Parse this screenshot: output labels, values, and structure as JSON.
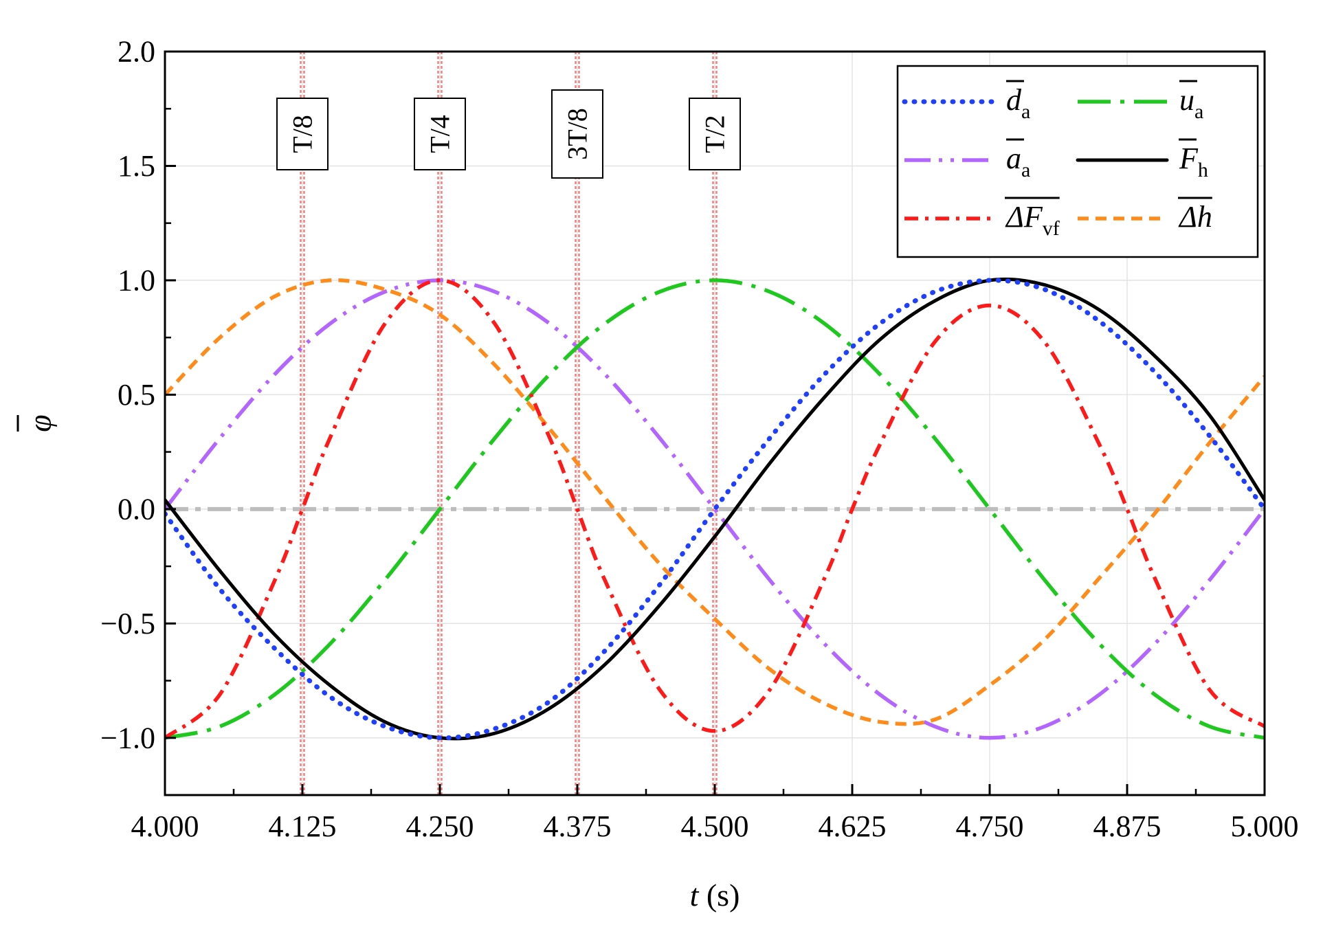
{
  "chart_data": {
    "type": "line",
    "title": "",
    "xlabel": {
      "var": "t",
      "unit": " (s)"
    },
    "ylabel": {
      "var": "φ",
      "overline": true
    },
    "xlim": [
      4.0,
      5.0
    ],
    "ylim": [
      -1.25,
      2.0
    ],
    "x_ticks": [
      4.0,
      4.125,
      4.25,
      4.375,
      4.5,
      4.625,
      4.75,
      4.875,
      5.0
    ],
    "x_tick_labels": [
      "4.000",
      "4.125",
      "4.250",
      "4.375",
      "4.500",
      "4.625",
      "4.750",
      "4.875",
      "5.000"
    ],
    "y_ticks": [
      -1.0,
      -0.5,
      0.0,
      0.5,
      1.0,
      1.5,
      2.0
    ],
    "y_tick_labels": [
      "−1.0",
      "−0.5",
      "0.0",
      "0.5",
      "1.0",
      "1.5",
      "2.0"
    ],
    "grid": true,
    "legend_position": "top-right",
    "period_s": 1.0,
    "vertical_markers": [
      {
        "x": 4.125,
        "label": "T/8"
      },
      {
        "x": 4.25,
        "label": "T/4"
      },
      {
        "x": 4.375,
        "label": "3T/8"
      },
      {
        "x": 4.5,
        "label": "T/2"
      }
    ],
    "zero_line": {
      "y": 0.0,
      "color": "#bdbdbd"
    },
    "series": [
      {
        "id": "d_a",
        "name": "d",
        "sub": "a",
        "color": "#1f3fff",
        "style": "dot",
        "x": [
          4.0,
          4.05,
          4.1,
          4.15,
          4.2,
          4.25,
          4.3,
          4.35,
          4.4,
          4.45,
          4.5,
          4.55,
          4.6,
          4.65,
          4.7,
          4.75,
          4.8,
          4.85,
          4.9,
          4.95,
          5.0
        ],
        "y": [
          -0.02,
          -0.35,
          -0.61,
          -0.82,
          -0.95,
          -1.0,
          -0.96,
          -0.84,
          -0.62,
          -0.33,
          0.0,
          0.31,
          0.59,
          0.81,
          0.95,
          1.0,
          0.96,
          0.82,
          0.6,
          0.32,
          0.0
        ]
      },
      {
        "id": "u_a",
        "name": "u",
        "sub": "a",
        "color": "#1ec81e",
        "style": "dashdot-long",
        "x": [
          4.0,
          4.05,
          4.1,
          4.15,
          4.2,
          4.25,
          4.3,
          4.35,
          4.4,
          4.45,
          4.5,
          4.55,
          4.6,
          4.65,
          4.7,
          4.75,
          4.8,
          4.85,
          4.9,
          4.95,
          5.0
        ],
        "y": [
          -1.0,
          -0.95,
          -0.81,
          -0.59,
          -0.31,
          0.0,
          0.31,
          0.59,
          0.81,
          0.95,
          1.0,
          0.95,
          0.81,
          0.59,
          0.31,
          0.0,
          -0.31,
          -0.59,
          -0.81,
          -0.95,
          -1.0
        ]
      },
      {
        "id": "a_a",
        "name": "a",
        "sub": "a",
        "color": "#b266ff",
        "style": "dashdotdot",
        "x": [
          4.0,
          4.05,
          4.1,
          4.15,
          4.2,
          4.25,
          4.3,
          4.35,
          4.4,
          4.45,
          4.5,
          4.55,
          4.6,
          4.65,
          4.7,
          4.75,
          4.8,
          4.85,
          4.9,
          4.95,
          5.0
        ],
        "y": [
          0.0,
          0.31,
          0.59,
          0.81,
          0.95,
          1.0,
          0.95,
          0.81,
          0.59,
          0.31,
          0.0,
          -0.31,
          -0.59,
          -0.81,
          -0.95,
          -1.0,
          -0.95,
          -0.81,
          -0.59,
          -0.31,
          0.0
        ]
      },
      {
        "id": "F_h",
        "name": "F",
        "sub": "h",
        "color": "#000000",
        "style": "solid",
        "x": [
          4.0,
          4.05,
          4.1,
          4.15,
          4.2,
          4.25,
          4.3,
          4.35,
          4.4,
          4.45,
          4.5,
          4.55,
          4.6,
          4.65,
          4.7,
          4.75,
          4.8,
          4.85,
          4.9,
          4.95,
          5.0
        ],
        "y": [
          0.04,
          -0.27,
          -0.55,
          -0.77,
          -0.93,
          -1.0,
          -0.98,
          -0.87,
          -0.68,
          -0.42,
          -0.12,
          0.2,
          0.49,
          0.74,
          0.91,
          1.0,
          0.98,
          0.87,
          0.67,
          0.41,
          0.04
        ]
      },
      {
        "id": "dF_vf",
        "name": "ΔF",
        "sub": "vf",
        "color": "#ff1a1a",
        "style": "dashdot",
        "x": [
          4.0,
          4.05,
          4.1,
          4.125,
          4.15,
          4.2,
          4.25,
          4.3,
          4.35,
          4.375,
          4.4,
          4.45,
          4.5,
          4.55,
          4.6,
          4.625,
          4.65,
          4.7,
          4.75,
          4.8,
          4.85,
          4.875,
          4.9,
          4.95,
          5.0
        ],
        "y": [
          -1.0,
          -0.81,
          -0.31,
          0.0,
          0.31,
          0.81,
          1.0,
          0.81,
          0.31,
          0.0,
          -0.31,
          -0.79,
          -0.97,
          -0.79,
          -0.3,
          0.0,
          0.28,
          0.73,
          0.89,
          0.73,
          0.28,
          0.0,
          -0.3,
          -0.79,
          -0.95
        ]
      },
      {
        "id": "dh",
        "name": "Δh",
        "sub": "",
        "color": "#ff8c1a",
        "style": "dash",
        "x": [
          4.0,
          4.05,
          4.1,
          4.15,
          4.2,
          4.25,
          4.3,
          4.35,
          4.4,
          4.45,
          4.5,
          4.55,
          4.6,
          4.65,
          4.7,
          4.75,
          4.8,
          4.85,
          4.9,
          4.95,
          5.0
        ],
        "y": [
          0.5,
          0.75,
          0.93,
          1.0,
          0.96,
          0.85,
          0.63,
          0.35,
          0.05,
          -0.24,
          -0.48,
          -0.7,
          -0.85,
          -0.93,
          -0.92,
          -0.77,
          -0.57,
          -0.3,
          -0.02,
          0.29,
          0.58
        ]
      }
    ]
  }
}
